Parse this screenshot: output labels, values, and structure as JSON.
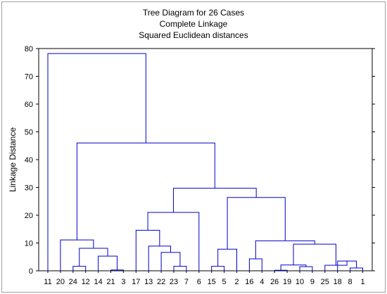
{
  "chart_data": {
    "type": "dendrogram",
    "title": "Tree Diagram for 26 Cases",
    "subtitle_1": "Complete Linkage",
    "subtitle_2": "Squared Euclidean distances",
    "ylabel": "Linkage Distance",
    "ylim": [
      0,
      80
    ],
    "y_ticks": [
      0,
      10,
      20,
      30,
      40,
      50,
      60,
      70,
      80
    ],
    "grid": false,
    "line_color": "#0000cc",
    "leaf_order": [
      "11",
      "20",
      "24",
      "12",
      "14",
      "21",
      "3",
      "17",
      "13",
      "22",
      "23",
      "7",
      "6",
      "15",
      "5",
      "2",
      "16",
      "4",
      "26",
      "19",
      "10",
      "9",
      "25",
      "18",
      "8",
      "1"
    ],
    "merges": [
      {
        "id": "A",
        "left": "21",
        "right": "3",
        "height": 0.3
      },
      {
        "id": "B",
        "left": "24",
        "right": "12",
        "height": 1.6
      },
      {
        "id": "C",
        "left": "14",
        "right": "A",
        "height": 5.3
      },
      {
        "id": "D",
        "left": "B",
        "right": "C",
        "height": 8.1
      },
      {
        "id": "E",
        "left": "20",
        "right": "D",
        "height": 11.1
      },
      {
        "id": "F",
        "left": "23",
        "right": "7",
        "height": 1.6
      },
      {
        "id": "G",
        "left": "22",
        "right": "F",
        "height": 6.6
      },
      {
        "id": "H",
        "left": "13",
        "right": "G",
        "height": 8.9
      },
      {
        "id": "I",
        "left": "17",
        "right": "H",
        "height": 14.6
      },
      {
        "id": "J",
        "left": "I",
        "right": "6",
        "height": 21.0
      },
      {
        "id": "K",
        "left": "15",
        "right": "5",
        "height": 1.6
      },
      {
        "id": "L",
        "left": "K",
        "right": "2",
        "height": 7.8
      },
      {
        "id": "M",
        "left": "16",
        "right": "4",
        "height": 4.3
      },
      {
        "id": "N",
        "left": "26",
        "right": "19",
        "height": 0.2
      },
      {
        "id": "O",
        "left": "10",
        "right": "9",
        "height": 1.5
      },
      {
        "id": "P",
        "left": "N",
        "right": "O",
        "height": 2.1
      },
      {
        "id": "Q",
        "left": "8",
        "right": "1",
        "height": 1.0
      },
      {
        "id": "R",
        "left": "18",
        "right": "Q",
        "height": 3.5
      },
      {
        "id": "S",
        "left": "25",
        "right": "R",
        "height": 2.0
      },
      {
        "id": "T",
        "left": "P",
        "right": "S",
        "height": 9.6
      },
      {
        "id": "U",
        "left": "M",
        "right": "T",
        "height": 10.8
      },
      {
        "id": "V",
        "left": "L",
        "right": "U",
        "height": 26.4
      },
      {
        "id": "W",
        "left": "J",
        "right": "V",
        "height": 29.7
      },
      {
        "id": "X",
        "left": "E",
        "right": "W",
        "height": 46.0
      },
      {
        "id": "Y",
        "left": "11",
        "right": "X",
        "height": 78.2
      }
    ]
  }
}
